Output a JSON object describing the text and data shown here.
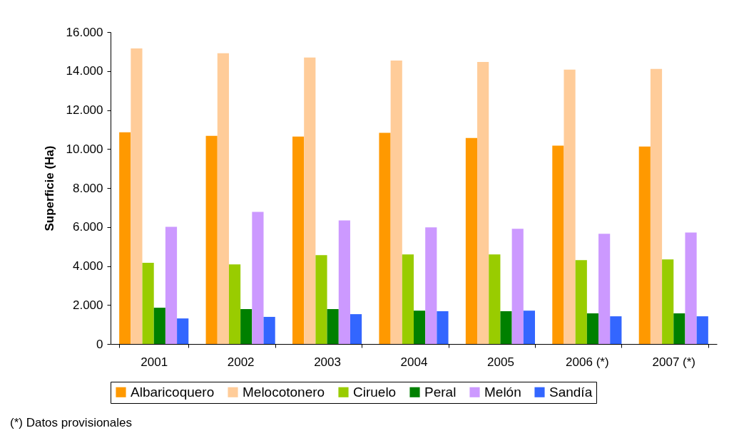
{
  "chart_data": {
    "type": "bar",
    "ylabel": "Superficie (Ha)",
    "categories": [
      "2001",
      "2002",
      "2003",
      "2004",
      "2005",
      "2006 (*)",
      "2007 (*)"
    ],
    "series": [
      {
        "name": "Albaricoquero",
        "color": "#ff9900",
        "values": [
          10860,
          10680,
          10640,
          10830,
          10570,
          10170,
          10130
        ]
      },
      {
        "name": "Melocotonero",
        "color": "#ffcc99",
        "values": [
          15160,
          14910,
          14690,
          14540,
          14470,
          14070,
          14110
        ]
      },
      {
        "name": "Ciruelo",
        "color": "#99cc00",
        "values": [
          4160,
          4080,
          4560,
          4590,
          4590,
          4300,
          4340
        ]
      },
      {
        "name": "Peral",
        "color": "#008000",
        "values": [
          1860,
          1790,
          1790,
          1710,
          1680,
          1570,
          1570
        ]
      },
      {
        "name": "Melón",
        "color": "#cc99ff",
        "values": [
          6010,
          6780,
          6340,
          5980,
          5910,
          5650,
          5720
        ]
      },
      {
        "name": "Sandía",
        "color": "#3366ff",
        "values": [
          1310,
          1390,
          1530,
          1680,
          1710,
          1420,
          1420
        ]
      }
    ],
    "ylim": [
      0,
      16000
    ],
    "yticks": [
      0,
      {
        "value": 2000,
        "label": "2.000"
      },
      {
        "value": 4000,
        "label": "4.000"
      },
      {
        "value": 6000,
        "label": "6.000"
      },
      {
        "value": 8000,
        "label": "8.000"
      },
      {
        "value": 10000,
        "label": "10.000"
      },
      {
        "value": 12000,
        "label": "12.000"
      },
      {
        "value": 14000,
        "label": "14.000"
      },
      {
        "value": 16000,
        "label": "16.000"
      }
    ],
    "grid": false,
    "legend": "bottom",
    "annotations": [
      "(*) Datos provisionales"
    ]
  }
}
